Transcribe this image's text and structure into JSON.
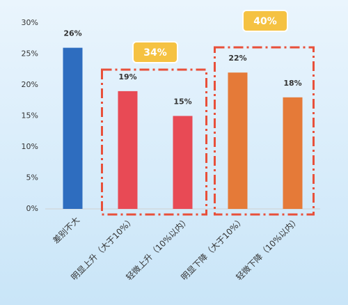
{
  "chart_data": {
    "type": "bar",
    "categories": [
      "差别不大",
      "明显上升（大于10%）",
      "轻微上升（10%以内）",
      "明显下降（大于10%）",
      "轻微下降（10%以内）"
    ],
    "values": [
      26,
      19,
      15,
      22,
      18
    ],
    "value_labels": [
      "26%",
      "19%",
      "15%",
      "22%",
      "18%"
    ],
    "colors": [
      "#2e6dbf",
      "#e84a55",
      "#e84a55",
      "#e57a38",
      "#e57a38"
    ],
    "ylim": [
      0,
      30
    ],
    "yticks": [
      {
        "value": 0,
        "label": "0%"
      },
      {
        "value": 5,
        "label": "5%"
      },
      {
        "value": 10,
        "label": "10%"
      },
      {
        "value": 15,
        "label": "15%"
      },
      {
        "value": 20,
        "label": "20%"
      },
      {
        "value": 25,
        "label": "25%"
      },
      {
        "value": 30,
        "label": "30%"
      }
    ],
    "annotations": [
      "34%",
      "40%"
    ]
  }
}
